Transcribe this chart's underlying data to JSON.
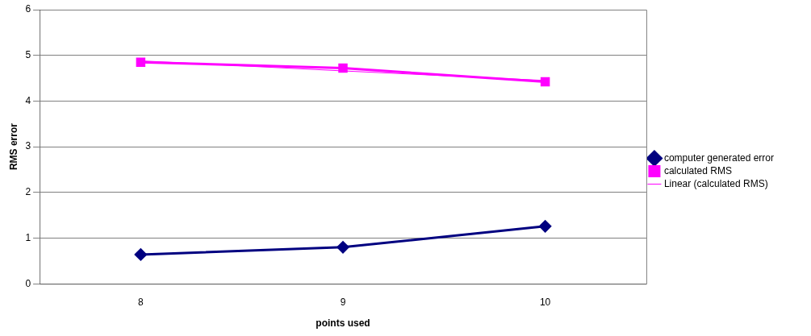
{
  "chart_data": {
    "type": "line",
    "xlabel": "points used",
    "ylabel": "RMS error",
    "categories": [
      "8",
      "9",
      "10"
    ],
    "series": [
      {
        "name": "computer generated error",
        "color": "#000080",
        "values": [
          0.64,
          0.8,
          1.26
        ],
        "marker": "diamond"
      },
      {
        "name": "calculated RMS",
        "color": "#ff00ff",
        "values": [
          4.85,
          4.72,
          4.42
        ],
        "marker": "square"
      },
      {
        "name": "Linear (calculated RMS)",
        "color": "#ff00ff",
        "values": [
          4.88,
          4.66,
          4.45
        ],
        "marker": "none"
      }
    ],
    "ylim": [
      0,
      6
    ],
    "yticks": [
      0,
      1,
      2,
      3,
      4,
      5,
      6
    ],
    "grid": "y",
    "legend": "right"
  }
}
